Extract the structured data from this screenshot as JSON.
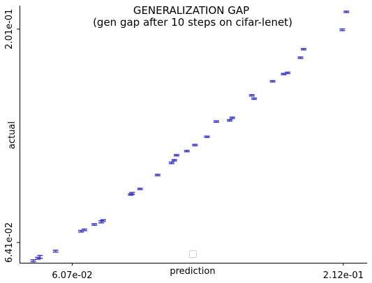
{
  "chart_data": {
    "type": "scatter",
    "title": "GENERALIZATION GAP",
    "subtitle": "(gen gap after 10 steps on cifar-lenet)",
    "xlabel": "prediction",
    "ylabel": "actual",
    "x_scale": "log",
    "y_scale": "log",
    "xlim": [
      0.0476,
      0.2366
    ],
    "ylim": [
      0.0575,
      0.228
    ],
    "x_ticks": [
      {
        "value": 0.0607,
        "label": "6.07e-02"
      },
      {
        "value": 0.212,
        "label": "2.12e-01"
      }
    ],
    "y_ticks": [
      {
        "value": 0.0641,
        "label": "6.41e-02"
      },
      {
        "value": 0.201,
        "label": "2.01e-01"
      }
    ],
    "legend": {
      "position": "bottom-center",
      "entries": []
    },
    "error_bars": true,
    "color": "#3a3ac8",
    "points": [
      {
        "x": 0.0507,
        "y": 0.0581,
        "ylo": 0.0578,
        "yhi": 0.0584
      },
      {
        "x": 0.0518,
        "y": 0.0589,
        "ylo": 0.0586,
        "yhi": 0.0592
      },
      {
        "x": 0.0523,
        "y": 0.0593,
        "ylo": 0.0589,
        "yhi": 0.0598
      },
      {
        "x": 0.0562,
        "y": 0.0612,
        "ylo": 0.0609,
        "yhi": 0.0615
      },
      {
        "x": 0.0632,
        "y": 0.0681,
        "ylo": 0.0678,
        "yhi": 0.0684
      },
      {
        "x": 0.0642,
        "y": 0.0686,
        "ylo": 0.0683,
        "yhi": 0.0689
      },
      {
        "x": 0.0672,
        "y": 0.0706,
        "ylo": 0.0703,
        "yhi": 0.0709
      },
      {
        "x": 0.0694,
        "y": 0.0716,
        "ylo": 0.0712,
        "yhi": 0.072
      },
      {
        "x": 0.07,
        "y": 0.0721,
        "ylo": 0.0718,
        "yhi": 0.0724
      },
      {
        "x": 0.0795,
        "y": 0.0829,
        "ylo": 0.0826,
        "yhi": 0.0832
      },
      {
        "x": 0.08,
        "y": 0.0834,
        "ylo": 0.083,
        "yhi": 0.0838
      },
      {
        "x": 0.083,
        "y": 0.0854,
        "ylo": 0.0851,
        "yhi": 0.0857
      },
      {
        "x": 0.09,
        "y": 0.092,
        "ylo": 0.0917,
        "yhi": 0.0923
      },
      {
        "x": 0.096,
        "y": 0.0982,
        "ylo": 0.0978,
        "yhi": 0.0986
      },
      {
        "x": 0.0972,
        "y": 0.0996,
        "ylo": 0.0993,
        "yhi": 0.0999
      },
      {
        "x": 0.0982,
        "y": 0.1023,
        "ylo": 0.102,
        "yhi": 0.1026
      },
      {
        "x": 0.103,
        "y": 0.1046,
        "ylo": 0.1043,
        "yhi": 0.1049
      },
      {
        "x": 0.1069,
        "y": 0.108,
        "ylo": 0.1077,
        "yhi": 0.1083
      },
      {
        "x": 0.113,
        "y": 0.1129,
        "ylo": 0.1126,
        "yhi": 0.1132
      },
      {
        "x": 0.118,
        "y": 0.1225,
        "ylo": 0.1221,
        "yhi": 0.1229
      },
      {
        "x": 0.1255,
        "y": 0.1233,
        "ylo": 0.123,
        "yhi": 0.1236
      },
      {
        "x": 0.127,
        "y": 0.125,
        "ylo": 0.1246,
        "yhi": 0.1254
      },
      {
        "x": 0.139,
        "y": 0.141,
        "ylo": 0.1406,
        "yhi": 0.1414
      },
      {
        "x": 0.1405,
        "y": 0.1385,
        "ylo": 0.1381,
        "yhi": 0.1389
      },
      {
        "x": 0.153,
        "y": 0.152,
        "ylo": 0.1517,
        "yhi": 0.1523
      },
      {
        "x": 0.161,
        "y": 0.158,
        "ylo": 0.1576,
        "yhi": 0.1584
      },
      {
        "x": 0.164,
        "y": 0.159,
        "ylo": 0.1586,
        "yhi": 0.1594
      },
      {
        "x": 0.174,
        "y": 0.1725,
        "ylo": 0.1721,
        "yhi": 0.1729
      },
      {
        "x": 0.1765,
        "y": 0.1805,
        "ylo": 0.1801,
        "yhi": 0.1809
      },
      {
        "x": 0.211,
        "y": 0.2003,
        "ylo": 0.1994,
        "yhi": 0.2012
      },
      {
        "x": 0.215,
        "y": 0.2205,
        "ylo": 0.2201,
        "yhi": 0.2209
      }
    ]
  }
}
